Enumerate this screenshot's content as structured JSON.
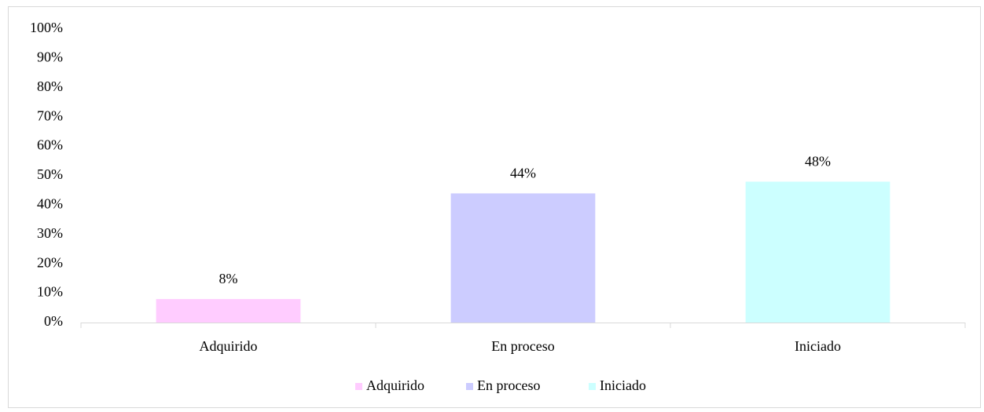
{
  "chart_data": {
    "type": "bar",
    "categories": [
      "Adquirido",
      "En proceso",
      "Iniciado"
    ],
    "values": [
      8,
      44,
      48
    ],
    "value_labels": [
      "8%",
      "44%",
      "48%"
    ],
    "colors": [
      "#ffccff",
      "#ccccff",
      "#ccffff"
    ],
    "ylim": [
      0,
      100
    ],
    "yticks": [
      {
        "value": 0,
        "label": "0%"
      },
      {
        "value": 10,
        "label": "10%"
      },
      {
        "value": 20,
        "label": "20%"
      },
      {
        "value": 30,
        "label": "30%"
      },
      {
        "value": 40,
        "label": "40%"
      },
      {
        "value": 50,
        "label": "50%"
      },
      {
        "value": 60,
        "label": "60%"
      },
      {
        "value": 70,
        "label": "70%"
      },
      {
        "value": 80,
        "label": "80%"
      },
      {
        "value": 90,
        "label": "90%"
      },
      {
        "value": 100,
        "label": "100%"
      }
    ],
    "grid": false,
    "legend": "bottom"
  }
}
